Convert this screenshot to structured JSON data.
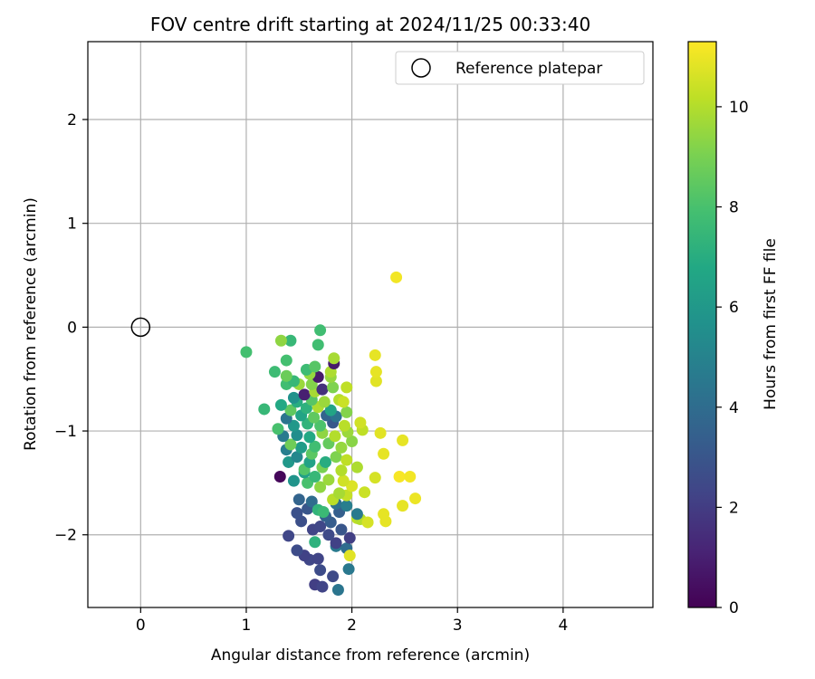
{
  "chart_data": {
    "type": "scatter",
    "title": "FOV centre drift starting at 2024/11/25 00:33:40",
    "xlabel": "Angular distance from reference (arcmin)",
    "ylabel": "Rotation from reference (arcmin)",
    "xlim": [
      -0.5,
      4.85
    ],
    "ylim": [
      -2.7,
      2.75
    ],
    "xticks": [
      0,
      1,
      2,
      3,
      4
    ],
    "yticks": [
      -2,
      -1,
      0,
      1,
      2
    ],
    "xtick_labels": [
      "0",
      "1",
      "2",
      "3",
      "4"
    ],
    "ytick_labels": [
      "−2",
      "−1",
      "0",
      "1",
      "2"
    ],
    "grid": true,
    "legend": {
      "label": "Reference platepar",
      "placement": "upper-right"
    },
    "reference_point": {
      "x": 0,
      "y": 0
    },
    "colorbar": {
      "label": "Hours from first FF file",
      "range": [
        0,
        11.3
      ],
      "ticks": [
        0,
        2,
        4,
        6,
        8,
        10
      ],
      "tick_labels": [
        "0",
        "2",
        "4",
        "6",
        "8",
        "10"
      ],
      "colormap": "viridis"
    },
    "points": [
      [
        1.65,
        -2.48,
        2.1
      ],
      [
        1.72,
        -2.5,
        2.3
      ],
      [
        1.87,
        -2.53,
        4.4
      ],
      [
        1.82,
        -2.4,
        2.5
      ],
      [
        1.7,
        -2.34,
        2.6
      ],
      [
        1.6,
        -2.24,
        2.4
      ],
      [
        1.55,
        -2.2,
        2.2
      ],
      [
        1.68,
        -2.23,
        2.3
      ],
      [
        1.48,
        -2.15,
        2.6
      ],
      [
        1.85,
        -2.11,
        4.6
      ],
      [
        1.95,
        -2.13,
        4.0
      ],
      [
        1.98,
        -2.2,
        10.8
      ],
      [
        1.97,
        -2.33,
        4.5
      ],
      [
        1.85,
        -2.08,
        2.2
      ],
      [
        1.65,
        -2.07,
        7.2
      ],
      [
        1.4,
        -2.01,
        2.4
      ],
      [
        1.98,
        -2.03,
        2.1
      ],
      [
        1.63,
        -1.95,
        2.3
      ],
      [
        1.7,
        -1.92,
        2.4
      ],
      [
        1.78,
        -2.0,
        2.5
      ],
      [
        1.9,
        -1.95,
        3.0
      ],
      [
        1.8,
        -1.88,
        3.3
      ],
      [
        1.52,
        -1.87,
        2.7
      ],
      [
        1.48,
        -1.79,
        2.8
      ],
      [
        1.58,
        -1.75,
        3.0
      ],
      [
        1.88,
        -1.78,
        3.4
      ],
      [
        1.75,
        -1.82,
        3.5
      ],
      [
        1.5,
        -1.66,
        3.6
      ],
      [
        1.62,
        -1.68,
        4.0
      ],
      [
        1.85,
        -1.7,
        4.2
      ],
      [
        1.95,
        -1.72,
        4.8
      ],
      [
        1.68,
        -1.76,
        7.3
      ],
      [
        1.73,
        -1.78,
        7.6
      ],
      [
        2.05,
        -1.84,
        10.2
      ],
      [
        2.08,
        -1.85,
        10.0
      ],
      [
        2.15,
        -1.88,
        10.6
      ],
      [
        2.3,
        -1.8,
        10.9
      ],
      [
        2.32,
        -1.87,
        10.9
      ],
      [
        2.48,
        -1.72,
        10.9
      ],
      [
        2.6,
        -1.65,
        11.0
      ],
      [
        2.05,
        -1.8,
        4.6
      ],
      [
        1.95,
        -1.62,
        10.3
      ],
      [
        1.82,
        -1.66,
        10.1
      ],
      [
        2.12,
        -1.59,
        10.4
      ],
      [
        1.88,
        -1.6,
        9.8
      ],
      [
        2.0,
        -1.53,
        10.7
      ],
      [
        1.7,
        -1.54,
        9.4
      ],
      [
        1.58,
        -1.5,
        8.0
      ],
      [
        1.45,
        -1.48,
        5.8
      ],
      [
        1.55,
        -1.4,
        6.4
      ],
      [
        1.65,
        -1.44,
        7.5
      ],
      [
        1.78,
        -1.47,
        9.6
      ],
      [
        1.92,
        -1.48,
        10.5
      ],
      [
        2.22,
        -1.45,
        10.6
      ],
      [
        2.45,
        -1.44,
        11.2
      ],
      [
        2.55,
        -1.44,
        11.1
      ],
      [
        1.32,
        -1.44,
        0.2
      ],
      [
        1.4,
        -1.3,
        6.0
      ],
      [
        1.55,
        -1.37,
        8.2
      ],
      [
        1.72,
        -1.35,
        9.0
      ],
      [
        1.9,
        -1.38,
        10.0
      ],
      [
        2.05,
        -1.35,
        9.9
      ],
      [
        1.75,
        -1.3,
        7.0
      ],
      [
        1.6,
        -1.3,
        6.5
      ],
      [
        1.48,
        -1.25,
        5.2
      ],
      [
        1.62,
        -1.22,
        8.4
      ],
      [
        1.85,
        -1.25,
        9.1
      ],
      [
        1.95,
        -1.28,
        10.2
      ],
      [
        2.3,
        -1.22,
        10.9
      ],
      [
        1.38,
        -1.18,
        4.8
      ],
      [
        1.52,
        -1.16,
        6.2
      ],
      [
        1.65,
        -1.15,
        7.8
      ],
      [
        1.78,
        -1.12,
        8.6
      ],
      [
        1.9,
        -1.16,
        9.5
      ],
      [
        2.0,
        -1.1,
        9.3
      ],
      [
        1.42,
        -1.13,
        8.8
      ],
      [
        2.48,
        -1.09,
        10.9
      ],
      [
        1.35,
        -1.05,
        4.6
      ],
      [
        1.48,
        -1.04,
        5.5
      ],
      [
        1.6,
        -1.06,
        6.8
      ],
      [
        1.72,
        -1.02,
        9.4
      ],
      [
        1.84,
        -1.05,
        10.0
      ],
      [
        1.96,
        -1.01,
        9.6
      ],
      [
        2.27,
        -1.02,
        10.8
      ],
      [
        2.1,
        -0.99,
        10.2
      ],
      [
        1.3,
        -0.98,
        8.0
      ],
      [
        1.45,
        -0.95,
        6.0
      ],
      [
        1.58,
        -0.93,
        7.3
      ],
      [
        1.7,
        -0.95,
        8.1
      ],
      [
        1.82,
        -0.92,
        3.1
      ],
      [
        1.93,
        -0.95,
        10.1
      ],
      [
        2.08,
        -0.92,
        10.5
      ],
      [
        1.38,
        -0.88,
        4.4
      ],
      [
        1.52,
        -0.85,
        6.6
      ],
      [
        1.64,
        -0.87,
        8.5
      ],
      [
        1.76,
        -0.85,
        3.6
      ],
      [
        1.85,
        -0.86,
        4.3
      ],
      [
        1.95,
        -0.82,
        9.2
      ],
      [
        1.17,
        -0.79,
        7.5
      ],
      [
        1.42,
        -0.8,
        8.5
      ],
      [
        1.57,
        -0.78,
        7.2
      ],
      [
        1.68,
        -0.77,
        9.9
      ],
      [
        1.8,
        -0.8,
        6.6
      ],
      [
        1.33,
        -0.75,
        6.8
      ],
      [
        1.48,
        -0.72,
        7.0
      ],
      [
        1.62,
        -0.7,
        8.3
      ],
      [
        1.74,
        -0.72,
        9.6
      ],
      [
        1.88,
        -0.7,
        10.0
      ],
      [
        1.92,
        -0.72,
        10.4
      ],
      [
        1.45,
        -0.68,
        5.7
      ],
      [
        1.55,
        -0.65,
        1.0
      ],
      [
        1.65,
        -0.62,
        9.8
      ],
      [
        1.72,
        -0.6,
        1.6
      ],
      [
        1.95,
        -0.58,
        10.2
      ],
      [
        1.38,
        -0.55,
        7.8
      ],
      [
        1.5,
        -0.55,
        9.6
      ],
      [
        1.62,
        -0.55,
        9.2
      ],
      [
        1.82,
        -0.58,
        9.1
      ],
      [
        1.45,
        -0.52,
        7.5
      ],
      [
        1.68,
        -0.48,
        0.8
      ],
      [
        1.8,
        -0.48,
        9.5
      ],
      [
        2.23,
        -0.52,
        10.8
      ],
      [
        1.38,
        -0.47,
        8.7
      ],
      [
        1.6,
        -0.45,
        9.5
      ],
      [
        1.8,
        -0.43,
        9.9
      ],
      [
        2.23,
        -0.43,
        10.9
      ],
      [
        1.57,
        -0.41,
        7.7
      ],
      [
        1.27,
        -0.43,
        7.7
      ],
      [
        1.83,
        -0.35,
        0.8
      ],
      [
        1.38,
        -0.32,
        7.9
      ],
      [
        1.83,
        -0.3,
        9.8
      ],
      [
        1.65,
        -0.38,
        8.3
      ],
      [
        2.22,
        -0.27,
        10.9
      ],
      [
        1.0,
        -0.24,
        7.9
      ],
      [
        1.68,
        -0.17,
        7.8
      ],
      [
        1.42,
        -0.13,
        7.5
      ],
      [
        1.33,
        -0.13,
        9.4
      ],
      [
        1.7,
        -0.03,
        7.8
      ],
      [
        2.42,
        0.48,
        11.1
      ]
    ]
  }
}
